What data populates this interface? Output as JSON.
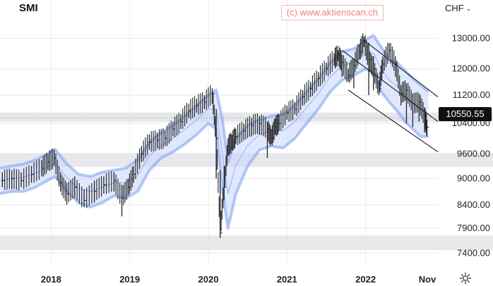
{
  "chart_data": {
    "type": "line",
    "title": "SMI",
    "currency_label": "CHF",
    "currency_icon": "chevron-down-icon",
    "watermark": "(c) www.aktienscan.ch",
    "y_ticks": [
      "13000.00",
      "12000.00",
      "11200.00",
      "10400.00",
      "9600.00",
      "9000.00",
      "8400.00",
      "7900.00",
      "7400.00"
    ],
    "y_tick_values": [
      13000,
      12000,
      11200,
      10400,
      9600,
      9000,
      8400,
      7900,
      7400
    ],
    "x_ticks": [
      "2018",
      "2019",
      "2020",
      "2021",
      "2022",
      "Nov"
    ],
    "x_tick_values": [
      2018.0,
      2019.0,
      2020.0,
      2021.0,
      2022.0,
      2022.83
    ],
    "xlim": [
      2017.35,
      2022.92
    ],
    "ylim": [
      7150,
      13600
    ],
    "log_scale": true,
    "grid": true,
    "last_price": "10550.55",
    "last_price_value": 10550.55,
    "highlight_zones": [
      [
        9280,
        9620
      ],
      [
        10440,
        10700
      ],
      [
        7460,
        7750
      ]
    ],
    "series": [
      {
        "style": "ohlc-bars",
        "color": "#222222",
        "x": [
          2017.38,
          2017.5,
          2017.62,
          2017.75,
          2017.88,
          2017.96,
          2018.04,
          2018.12,
          2018.2,
          2018.3,
          2018.42,
          2018.55,
          2018.67,
          2018.8,
          2018.9,
          2018.98,
          2019.05,
          2019.15,
          2019.25,
          2019.35,
          2019.45,
          2019.55,
          2019.65,
          2019.75,
          2019.85,
          2019.95,
          2020.05,
          2020.1,
          2020.15,
          2020.2,
          2020.25,
          2020.3,
          2020.35,
          2020.45,
          2020.55,
          2020.65,
          2020.75,
          2020.8,
          2020.85,
          2020.9,
          2021.0,
          2021.1,
          2021.2,
          2021.3,
          2021.4,
          2021.5,
          2021.6,
          2021.65,
          2021.7,
          2021.78,
          2021.85,
          2021.92,
          2021.98,
          2022.04,
          2022.1,
          2022.17,
          2022.22,
          2022.3,
          2022.38,
          2022.45,
          2022.52,
          2022.6,
          2022.68,
          2022.75,
          2022.78
        ],
        "values": [
          8950,
          9000,
          8950,
          9100,
          9250,
          9400,
          9500,
          8900,
          8650,
          8800,
          8500,
          8700,
          8850,
          8950,
          8550,
          8800,
          9100,
          9600,
          9900,
          9950,
          10000,
          10250,
          10450,
          10750,
          10900,
          11000,
          11250,
          10000,
          7800,
          8800,
          9800,
          9900,
          10050,
          10200,
          10350,
          10400,
          10250,
          10000,
          10300,
          10400,
          10700,
          10800,
          11150,
          11400,
          11700,
          12000,
          12300,
          12450,
          12200,
          11800,
          12100,
          12550,
          12900,
          12300,
          12000,
          11400,
          12150,
          12600,
          12150,
          11250,
          11350,
          10950,
          11000,
          10600,
          10300
        ],
        "lows": [
          8800,
          8750,
          8800,
          8900,
          9050,
          9200,
          9300,
          8700,
          8400,
          8550,
          8350,
          8450,
          8650,
          8700,
          8150,
          8600,
          8900,
          9400,
          9700,
          9750,
          9800,
          10050,
          10250,
          10550,
          10700,
          10800,
          10950,
          9000,
          7700,
          8500,
          9550,
          9700,
          9850,
          9950,
          10050,
          10100,
          9500,
          9850,
          10100,
          10200,
          10500,
          10650,
          10900,
          11150,
          11450,
          11800,
          12100,
          12250,
          11750,
          11600,
          11400,
          12300,
          12700,
          11200,
          11350,
          11200,
          11850,
          12350,
          11750,
          10900,
          10400,
          10300,
          10450,
          10150,
          10050
        ],
        "highs": [
          9150,
          9200,
          9150,
          9300,
          9450,
          9600,
          9700,
          9150,
          8900,
          9050,
          8750,
          8950,
          9050,
          9150,
          8850,
          9000,
          9300,
          9800,
          10100,
          10150,
          10200,
          10450,
          10650,
          10950,
          11100,
          11200,
          11400,
          10800,
          9200,
          9300,
          10000,
          10100,
          10250,
          10400,
          10550,
          10600,
          10450,
          10250,
          10550,
          10650,
          10900,
          11000,
          11350,
          11600,
          11900,
          12200,
          12500,
          12600,
          12450,
          12000,
          12300,
          12800,
          13050,
          12850,
          12400,
          11650,
          12400,
          12850,
          12400,
          11500,
          11550,
          11250,
          11250,
          10850,
          10500
        ]
      },
      {
        "style": "band",
        "color": "#7b9ff0",
        "x": [
          2017.35,
          2017.5,
          2017.65,
          2017.8,
          2017.95,
          2018.05,
          2018.2,
          2018.35,
          2018.5,
          2018.65,
          2018.8,
          2018.95,
          2019.1,
          2019.25,
          2019.4,
          2019.55,
          2019.7,
          2019.85,
          2020.0,
          2020.1,
          2020.18,
          2020.25,
          2020.35,
          2020.5,
          2020.65,
          2020.8,
          2020.95,
          2021.1,
          2021.25,
          2021.4,
          2021.55,
          2021.7,
          2021.85,
          2022.0,
          2022.1,
          2022.2,
          2022.3,
          2022.4,
          2022.5,
          2022.6,
          2022.7,
          2022.8
        ],
        "upper": [
          9250,
          9300,
          9350,
          9450,
          9600,
          9720,
          9350,
          9100,
          9050,
          9150,
          9200,
          9250,
          9450,
          9900,
          10150,
          10350,
          10600,
          10900,
          11200,
          11350,
          10500,
          9400,
          10000,
          10350,
          10500,
          10600,
          10650,
          10900,
          11300,
          11700,
          12200,
          12550,
          12650,
          12950,
          13100,
          12700,
          12300,
          12200,
          11950,
          11700,
          11500,
          11300
        ],
        "lower": [
          8650,
          8700,
          8700,
          8800,
          8950,
          9050,
          8700,
          8450,
          8350,
          8450,
          8600,
          8550,
          8700,
          9200,
          9500,
          9650,
          9850,
          10100,
          10400,
          10250,
          8700,
          7900,
          8650,
          9300,
          9700,
          9800,
          9750,
          10000,
          10400,
          10800,
          11300,
          11650,
          11800,
          12000,
          11900,
          11300,
          11000,
          10750,
          10450,
          10250,
          10050,
          10050
        ],
        "mid": [
          8950,
          9000,
          9030,
          9120,
          9270,
          9380,
          9020,
          8770,
          8700,
          8800,
          8900,
          8900,
          9070,
          9550,
          9820,
          10000,
          10230,
          10500,
          10800,
          10800,
          9600,
          8650,
          9320,
          9820,
          10100,
          10200,
          10200,
          10450,
          10850,
          11250,
          11750,
          12100,
          12220,
          12470,
          12500,
          12000,
          11650,
          11470,
          11200,
          10970,
          10770,
          10670
        ]
      },
      {
        "style": "channel",
        "color": "#222222",
        "lines": [
          {
            "x": [
              2021.97,
              2022.92
            ],
            "y": [
              12950,
              11150
            ]
          },
          {
            "x": [
              2021.7,
              2022.92
            ],
            "y": [
              12600,
              10450
            ]
          },
          {
            "x": [
              2021.78,
              2022.92
            ],
            "y": [
              11350,
              9650
            ]
          }
        ]
      }
    ]
  },
  "settings_icon": "gear-icon"
}
